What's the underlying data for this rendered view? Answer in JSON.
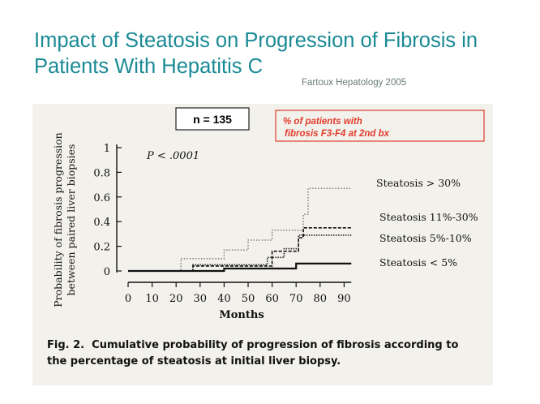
{
  "slide": {
    "title": "Impact of Steatosis on Progression of Fibrosis in Patients With Hepatitis C",
    "citation": "Fartoux Hepatology 2005"
  },
  "annotations": {
    "n_label": "n = 135",
    "red_note_line1": "% of patients with",
    "red_note_line2": "fibrosis F3-F4 at 2nd bx",
    "red_color": "#e23b2b"
  },
  "caption": {
    "fig_label": "Fig. 2.",
    "text_line1": "Cumulative probability of progression of fibrosis according to",
    "text_line2": "the percentage of steatosis at initial liver biopsy."
  },
  "chart_data": {
    "type": "line",
    "step": true,
    "title": "",
    "xlabel": "Months",
    "ylabel_line1": "Probability of fibrosis progression",
    "ylabel_line2": "between paired liver biopsies",
    "xlim": [
      0,
      95
    ],
    "ylim": [
      0,
      1
    ],
    "x_ticks": [
      0,
      10,
      20,
      30,
      40,
      50,
      60,
      70,
      80,
      90
    ],
    "x_tick_labels": [
      "0",
      "10",
      "20",
      "30",
      "40",
      "50",
      "60",
      "70",
      "80",
      "90"
    ],
    "y_ticks": [
      0,
      0.2,
      0.4,
      0.6,
      0.8,
      1
    ],
    "y_tick_labels": [
      "0",
      "0.2",
      "0.4",
      "0.6",
      "0.8",
      "1"
    ],
    "p_value_label": "P < .0001",
    "grid": false,
    "series": [
      {
        "name": "Steatosis > 30%",
        "style": "dotted-light",
        "points": [
          [
            0,
            0
          ],
          [
            22,
            0
          ],
          [
            22,
            0.1
          ],
          [
            40,
            0.1
          ],
          [
            40,
            0.17
          ],
          [
            50,
            0.17
          ],
          [
            50,
            0.25
          ],
          [
            60,
            0.25
          ],
          [
            60,
            0.33
          ],
          [
            73,
            0.33
          ],
          [
            73,
            0.46
          ],
          [
            75,
            0.46
          ],
          [
            75,
            0.67
          ],
          [
            93,
            0.67
          ]
        ]
      },
      {
        "name": "Steatosis 11%-30%",
        "style": "dashed",
        "points": [
          [
            0,
            0
          ],
          [
            27,
            0
          ],
          [
            27,
            0.04
          ],
          [
            60,
            0.04
          ],
          [
            60,
            0.16
          ],
          [
            71,
            0.16
          ],
          [
            71,
            0.27
          ],
          [
            73,
            0.27
          ],
          [
            73,
            0.35
          ],
          [
            93,
            0.35
          ]
        ]
      },
      {
        "name": "Steatosis 5%-10%",
        "style": "dotted-dark",
        "points": [
          [
            0,
            0
          ],
          [
            27,
            0
          ],
          [
            27,
            0.05
          ],
          [
            58,
            0.05
          ],
          [
            58,
            0.11
          ],
          [
            65,
            0.11
          ],
          [
            65,
            0.18
          ],
          [
            71,
            0.18
          ],
          [
            71,
            0.29
          ],
          [
            93,
            0.29
          ]
        ]
      },
      {
        "name": "Steatosis < 5%",
        "style": "solid",
        "points": [
          [
            0,
            0
          ],
          [
            40,
            0
          ],
          [
            40,
            0.02
          ],
          [
            70,
            0.02
          ],
          [
            70,
            0.06
          ],
          [
            93,
            0.06
          ]
        ]
      }
    ]
  }
}
